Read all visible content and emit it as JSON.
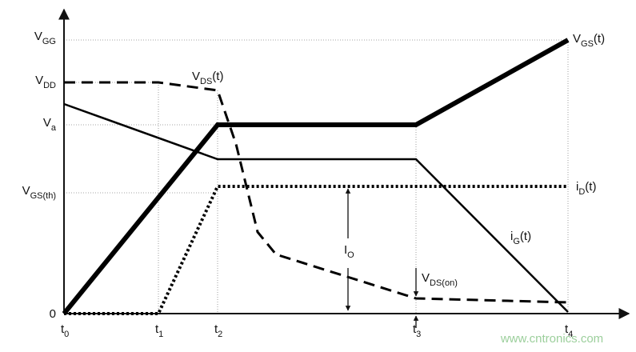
{
  "y_labels": [
    {
      "main": "V",
      "sub": "GG"
    },
    {
      "main": "V",
      "sub": "DD"
    },
    {
      "main": "V",
      "sub": "a"
    },
    {
      "main": "V",
      "sub": "GS(th)"
    },
    {
      "main": "0"
    }
  ],
  "x_labels": [
    {
      "main": "t",
      "sub": "0"
    },
    {
      "main": "t",
      "sub": "1"
    },
    {
      "main": "t",
      "sub": "2"
    },
    {
      "main": "t",
      "sub": "3"
    },
    {
      "main": "t",
      "sub": "4"
    }
  ],
  "curve_labels": {
    "vds": {
      "main": "V",
      "sub": "DS",
      "suffix": "(t)"
    },
    "vgs": {
      "main": "V",
      "sub": "GS",
      "suffix": "(t)"
    },
    "id": {
      "main": "i",
      "sub": "D",
      "suffix": "(t)"
    },
    "ig": {
      "main": "i",
      "sub": "G",
      "suffix": "(t)"
    }
  },
  "annotations": {
    "io": {
      "main": "I",
      "sub": "O"
    },
    "vds_on": {
      "main": "V",
      "sub": "DS(on)"
    }
  },
  "watermark": "www.cntronics.com"
}
